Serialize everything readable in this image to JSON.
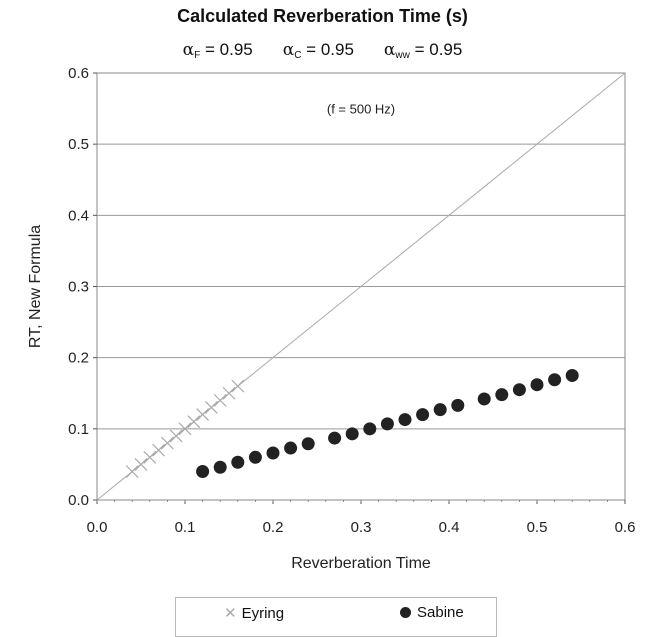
{
  "chart_data": {
    "type": "scatter",
    "title": "Calculated Reverberation Time (s)",
    "subtitle": {
      "symbol": "α",
      "parts": [
        {
          "sub": "F",
          "text": " = 0.95"
        },
        {
          "sub": "C",
          "text": " = 0.95"
        },
        {
          "sub": "ww",
          "text": " = 0.95"
        }
      ]
    },
    "annotation": "(f = 500 Hz)",
    "xlabel": "Reverberation Time",
    "ylabel": "RT, New Formula",
    "xlim": [
      0.0,
      0.6
    ],
    "ylim": [
      0.0,
      0.6
    ],
    "xticks": [
      "0.0",
      "0.1",
      "0.2",
      "0.3",
      "0.4",
      "0.5",
      "0.6"
    ],
    "yticks": [
      "0.0",
      "0.1",
      "0.2",
      "0.3",
      "0.4",
      "0.5",
      "0.6"
    ],
    "grid": "horizontal",
    "reference_line": "y = x",
    "legend_position": "bottom",
    "series": [
      {
        "name": "Eyring",
        "marker": "x",
        "color": "#aaaaaa",
        "x": [
          0.04,
          0.05,
          0.06,
          0.07,
          0.08,
          0.09,
          0.1,
          0.11,
          0.12,
          0.13,
          0.14,
          0.15,
          0.16
        ],
        "y": [
          0.04,
          0.05,
          0.06,
          0.07,
          0.08,
          0.09,
          0.1,
          0.11,
          0.12,
          0.13,
          0.14,
          0.15,
          0.16
        ]
      },
      {
        "name": "Sabine",
        "marker": "dot",
        "color": "#222222",
        "x": [
          0.12,
          0.14,
          0.16,
          0.18,
          0.2,
          0.22,
          0.24,
          0.27,
          0.29,
          0.31,
          0.33,
          0.35,
          0.37,
          0.39,
          0.41,
          0.44,
          0.46,
          0.48,
          0.5,
          0.52,
          0.54
        ],
        "y": [
          0.04,
          0.046,
          0.053,
          0.06,
          0.066,
          0.073,
          0.079,
          0.087,
          0.093,
          0.1,
          0.107,
          0.113,
          0.12,
          0.127,
          0.133,
          0.142,
          0.148,
          0.155,
          0.162,
          0.169,
          0.175
        ]
      }
    ]
  }
}
